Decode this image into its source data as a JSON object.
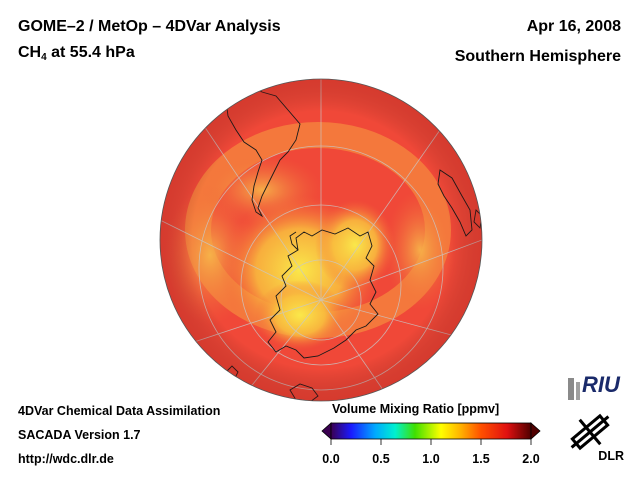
{
  "header": {
    "title_line1": "GOME–2 / MetOp – 4DVar Analysis",
    "species": "CH",
    "species_sub": "4",
    "level": " at 55.4 hPa",
    "date": "Apr 16, 2008",
    "region": "Southern Hemisphere"
  },
  "footer": {
    "line1": "4DVar Chemical Data Assimilation",
    "line2": "SACADA Version 1.7",
    "line3": "http://wdc.dlr.de"
  },
  "colorbar": {
    "title": "Volume Mixing Ratio [ppmv]",
    "ticks": [
      "0.0",
      "0.5",
      "1.0",
      "1.5",
      "2.0"
    ],
    "range": [
      0.0,
      2.0
    ],
    "colors": [
      "#3a0050",
      "#1a1aff",
      "#00b4ff",
      "#00f0d0",
      "#40e000",
      "#ffff00",
      "#ffb000",
      "#ff5000",
      "#e01010",
      "#500000"
    ]
  },
  "logos": {
    "riu": "RIU",
    "dlr": "DLR"
  },
  "map_colors": {
    "background_field": "#f04a3a",
    "high_ch4": "#f8e040",
    "mid_ch4": "#f89a3a",
    "coastline": "#1a1a1a",
    "graticule": "#b0b0b0"
  }
}
